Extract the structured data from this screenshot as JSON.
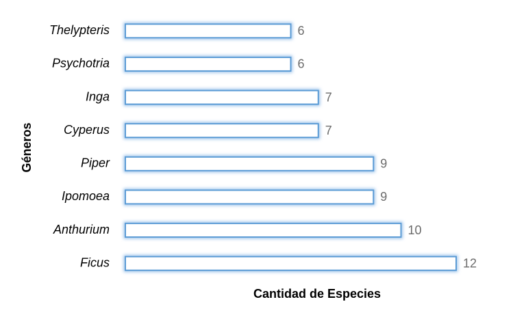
{
  "chart_data": {
    "type": "bar",
    "orientation": "horizontal",
    "xlabel": "Cantidad de Especies",
    "ylabel": "Géneros",
    "categories": [
      "Thelypteris",
      "Psychotria",
      "Inga",
      "Cyperus",
      "Piper",
      "Ipomoea",
      "Anthurium",
      "Ficus"
    ],
    "values": [
      6,
      6,
      7,
      7,
      9,
      9,
      10,
      12
    ],
    "color": "#5b9bd5",
    "xlim": [
      0,
      12
    ]
  }
}
